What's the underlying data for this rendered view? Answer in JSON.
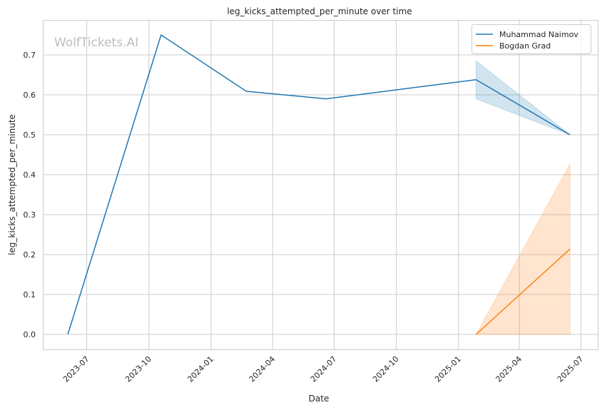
{
  "chart_data": {
    "type": "line",
    "title": "leg_kicks_attempted_per_minute over time",
    "xlabel": "Date",
    "ylabel": "leg_kicks_attempted_per_minute",
    "watermark": "WolfTickets.AI",
    "xlim": [
      "2023-04-27",
      "2025-07-26"
    ],
    "ylim": [
      -0.0375,
      0.7875
    ],
    "xticks": [
      "2023-07",
      "2023-10",
      "2024-01",
      "2024-04",
      "2024-07",
      "2024-10",
      "2025-01",
      "2025-04",
      "2025-07"
    ],
    "yticks": [
      "0.0",
      "0.1",
      "0.2",
      "0.3",
      "0.4",
      "0.5",
      "0.6",
      "0.7"
    ],
    "grid": true,
    "legend_position": "top-right",
    "series": [
      {
        "name": "Muhammad Naimov",
        "color": "#1f77b4",
        "points": [
          {
            "x": "2023-06-03",
            "y": 0.0
          },
          {
            "x": "2023-10-19",
            "y": 0.75
          },
          {
            "x": "2024-02-22",
            "y": 0.609
          },
          {
            "x": "2024-06-19",
            "y": 0.59
          },
          {
            "x": "2025-01-27",
            "y": 0.638,
            "ci": [
              0.59,
              0.685
            ]
          },
          {
            "x": "2025-06-15",
            "y": 0.5,
            "ci": [
              0.5,
              0.5
            ]
          }
        ]
      },
      {
        "name": "Bogdan Grad",
        "color": "#ff7f0e",
        "points": [
          {
            "x": "2025-01-27",
            "y": 0.0,
            "ci": [
              0.0,
              0.0
            ]
          },
          {
            "x": "2025-06-15",
            "y": 0.214,
            "ci": [
              0.0,
              0.427
            ]
          }
        ]
      }
    ]
  }
}
